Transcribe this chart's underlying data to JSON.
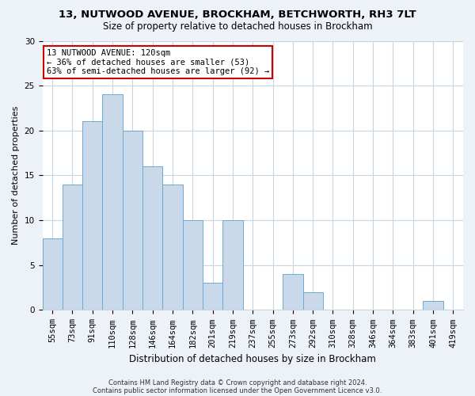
{
  "title": "13, NUTWOOD AVENUE, BROCKHAM, BETCHWORTH, RH3 7LT",
  "subtitle": "Size of property relative to detached houses in Brockham",
  "xlabel": "Distribution of detached houses by size in Brockham",
  "ylabel": "Number of detached properties",
  "categories": [
    "55sqm",
    "73sqm",
    "91sqm",
    "110sqm",
    "128sqm",
    "146sqm",
    "164sqm",
    "182sqm",
    "201sqm",
    "219sqm",
    "237sqm",
    "255sqm",
    "273sqm",
    "292sqm",
    "310sqm",
    "328sqm",
    "346sqm",
    "364sqm",
    "383sqm",
    "401sqm",
    "419sqm"
  ],
  "values": [
    8,
    14,
    21,
    24,
    20,
    16,
    14,
    10,
    3,
    10,
    0,
    0,
    4,
    2,
    0,
    0,
    0,
    0,
    0,
    1,
    0
  ],
  "bar_color": "#c9d9ea",
  "bar_edge_color": "#6aaad4",
  "annotation_box_color": "#ffffff",
  "annotation_border_color": "#cc0000",
  "annotation_text": "13 NUTWOOD AVENUE: 120sqm\n← 36% of detached houses are smaller (53)\n63% of semi-detached houses are larger (92) →",
  "annotation_fontsize": 7.5,
  "ylim": [
    0,
    30
  ],
  "yticks": [
    0,
    5,
    10,
    15,
    20,
    25,
    30
  ],
  "footer1": "Contains HM Land Registry data © Crown copyright and database right 2024.",
  "footer2": "Contains public sector information licensed under the Open Government Licence v3.0.",
  "background_color": "#edf2f8",
  "plot_bg_color": "#ffffff",
  "grid_color": "#c8d4e0",
  "title_fontsize": 9.5,
  "subtitle_fontsize": 8.5,
  "ylabel_fontsize": 8,
  "xlabel_fontsize": 8.5,
  "tick_fontsize": 7.5,
  "footer_fontsize": 6
}
